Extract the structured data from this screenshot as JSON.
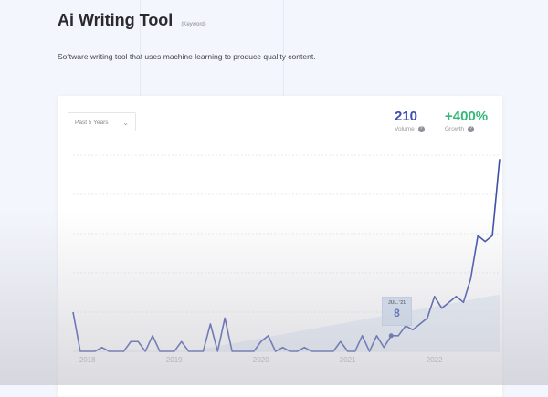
{
  "header": {
    "title": "Ai Writing Tool",
    "tag": "(Keyword)",
    "description": "Software writing tool that uses machine learning to produce quality content."
  },
  "card": {
    "range_select": "Past 5 Years",
    "volume": {
      "value": "210",
      "label": "Volume"
    },
    "growth": {
      "value": "+400%",
      "label": "Growth"
    },
    "tooltip": {
      "date": "JUL. '21",
      "value": "8"
    }
  },
  "colors": {
    "line": "#3f4fa8",
    "volume": "#3b4db0",
    "growth": "#35b87a",
    "trend": "#dfe8f5"
  },
  "chart_data": {
    "type": "line",
    "title": "",
    "ylim": [
      0,
      100
    ],
    "grid": true,
    "x_tick_labels": [
      "2018",
      "2019",
      "2020",
      "2021",
      "2022"
    ],
    "x": [
      "2017-11",
      "2017-12",
      "2018-01",
      "2018-02",
      "2018-03",
      "2018-04",
      "2018-05",
      "2018-06",
      "2018-07",
      "2018-08",
      "2018-09",
      "2018-10",
      "2018-11",
      "2018-12",
      "2019-01",
      "2019-02",
      "2019-03",
      "2019-04",
      "2019-05",
      "2019-06",
      "2019-07",
      "2019-08",
      "2019-09",
      "2019-10",
      "2019-11",
      "2019-12",
      "2020-01",
      "2020-02",
      "2020-03",
      "2020-04",
      "2020-05",
      "2020-06",
      "2020-07",
      "2020-08",
      "2020-09",
      "2020-10",
      "2020-11",
      "2020-12",
      "2021-01",
      "2021-02",
      "2021-03",
      "2021-04",
      "2021-05",
      "2021-06",
      "2021-07",
      "2021-08",
      "2021-09",
      "2021-10",
      "2021-11",
      "2021-12",
      "2022-01",
      "2022-02",
      "2022-03",
      "2022-04",
      "2022-05",
      "2022-06",
      "2022-07",
      "2022-08",
      "2022-09",
      "2022-10"
    ],
    "values": [
      20,
      0,
      0,
      0,
      2,
      0,
      0,
      0,
      5,
      5,
      0,
      8,
      0,
      0,
      0,
      5,
      0,
      0,
      0,
      14,
      0,
      17,
      0,
      0,
      0,
      0,
      5,
      8,
      0,
      2,
      0,
      0,
      2,
      0,
      0,
      0,
      0,
      5,
      0,
      0,
      8,
      0,
      8,
      2,
      8,
      8,
      13,
      11,
      14,
      17,
      28,
      22,
      25,
      28,
      25,
      37,
      59,
      56,
      59,
      98
    ],
    "trend": {
      "start": "2019-03",
      "values": [
        0,
        29
      ]
    },
    "highlight": {
      "x": "2021-07",
      "value": 8
    }
  }
}
